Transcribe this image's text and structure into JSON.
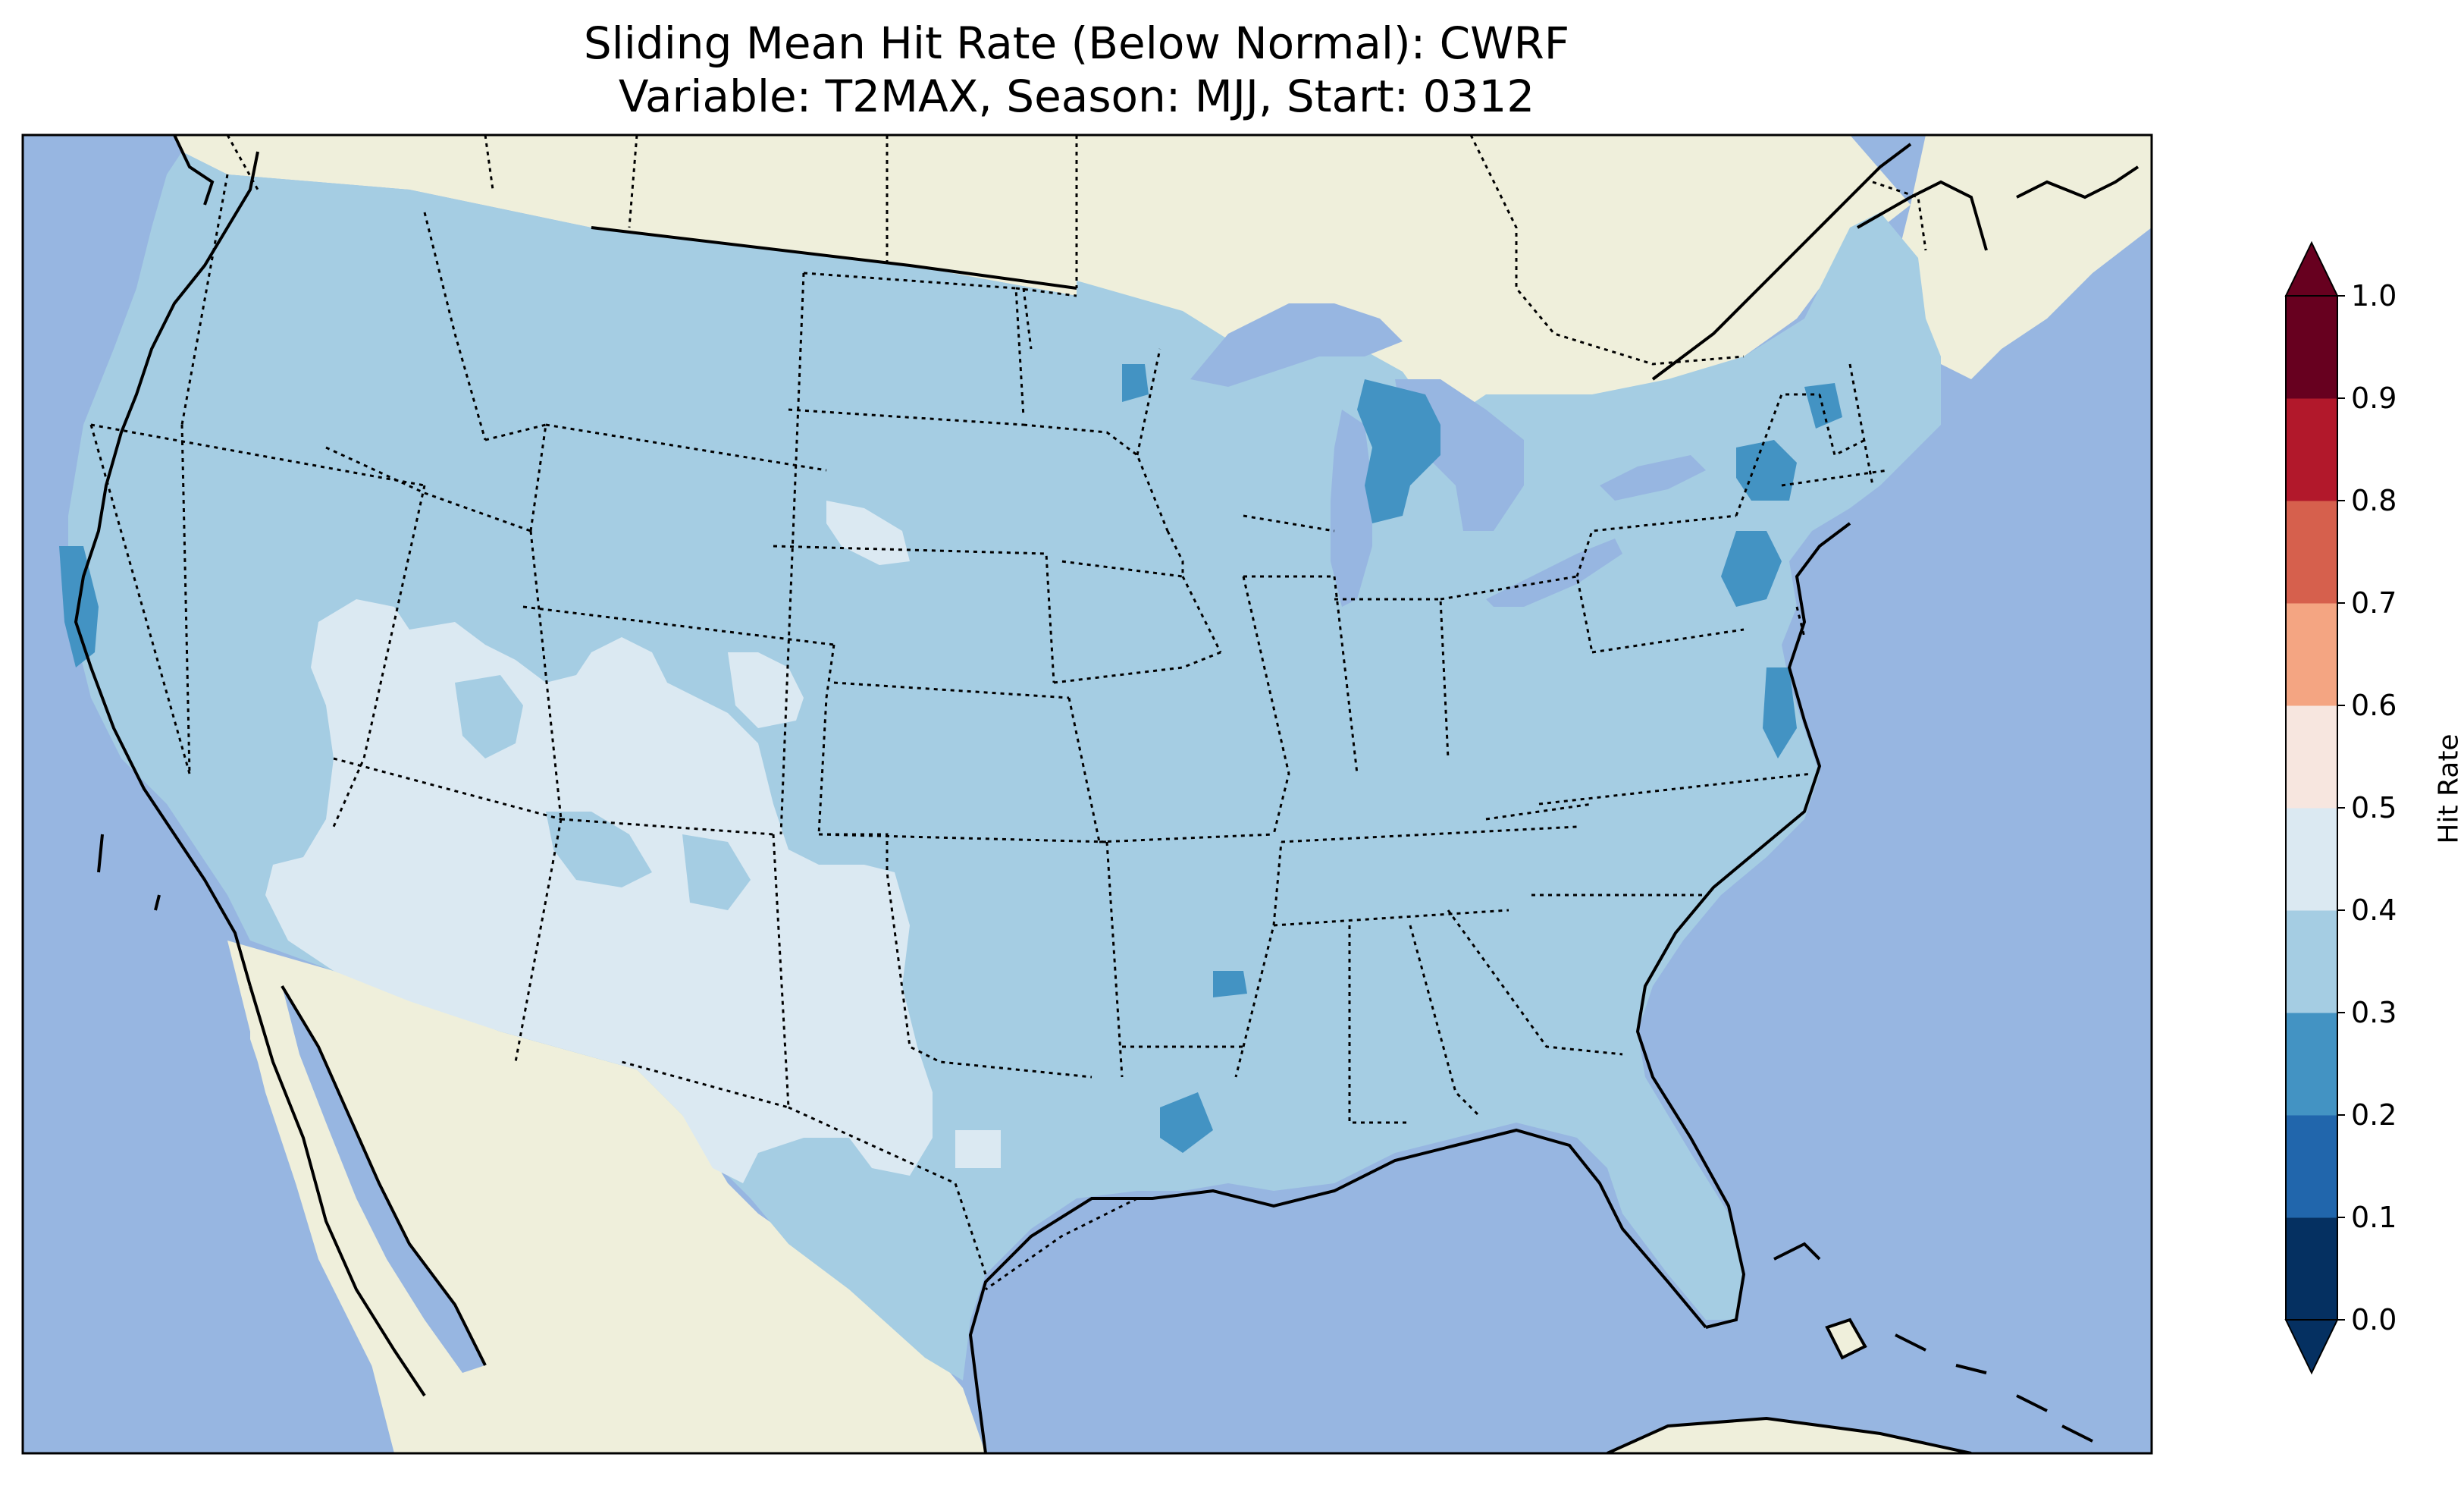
{
  "title": {
    "line1": "Sliding Mean Hit Rate (Below Normal): CWRF",
    "line2": "Variable: T2MAX, Season: MJJ, Start: 0312"
  },
  "colors": {
    "ocean": "#97b6e1",
    "land": "#efefdb",
    "lakes": "#97b6e1",
    "hit_0_1": "#053061",
    "hit_1_2": "#2166ac",
    "hit_2_3": "#4393c3",
    "hit_3_4": "#a5cde3",
    "hit_4_5": "#dbe9f2",
    "hit_5_6": "#f7e6df",
    "hit_6_7": "#f4a582",
    "hit_7_8": "#d6604d",
    "hit_8_9": "#b2182b",
    "hit_9_10": "#67001f"
  },
  "colorbar": {
    "label": "Hit Rate",
    "ticks": [
      "0.0",
      "0.1",
      "0.2",
      "0.3",
      "0.4",
      "0.5",
      "0.6",
      "0.7",
      "0.8",
      "0.9",
      "1.0"
    ],
    "extend": "both"
  },
  "map_layers": [
    "coastlines",
    "state-borders",
    "country-borders",
    "lakes"
  ],
  "dominant_value_range": "0.3-0.4",
  "regions": [
    {
      "name": "conus",
      "value_range": "0.3-0.4"
    },
    {
      "name": "southwest",
      "value_range": "0.4-0.5"
    },
    {
      "name": "great-basin",
      "value_range": "0.4-0.5"
    },
    {
      "name": "south-dakota-spot",
      "value_range": "0.4-0.5"
    },
    {
      "name": "michigan",
      "value_range": "0.2-0.3"
    },
    {
      "name": "pennsylvania",
      "value_range": "0.2-0.3"
    },
    {
      "name": "new-york",
      "value_range": "0.2-0.3"
    },
    {
      "name": "california-coast",
      "value_range": "0.2-0.3"
    },
    {
      "name": "louisiana",
      "value_range": "0.2-0.3"
    },
    {
      "name": "virginia-coast",
      "value_range": "0.2-0.3"
    }
  ]
}
